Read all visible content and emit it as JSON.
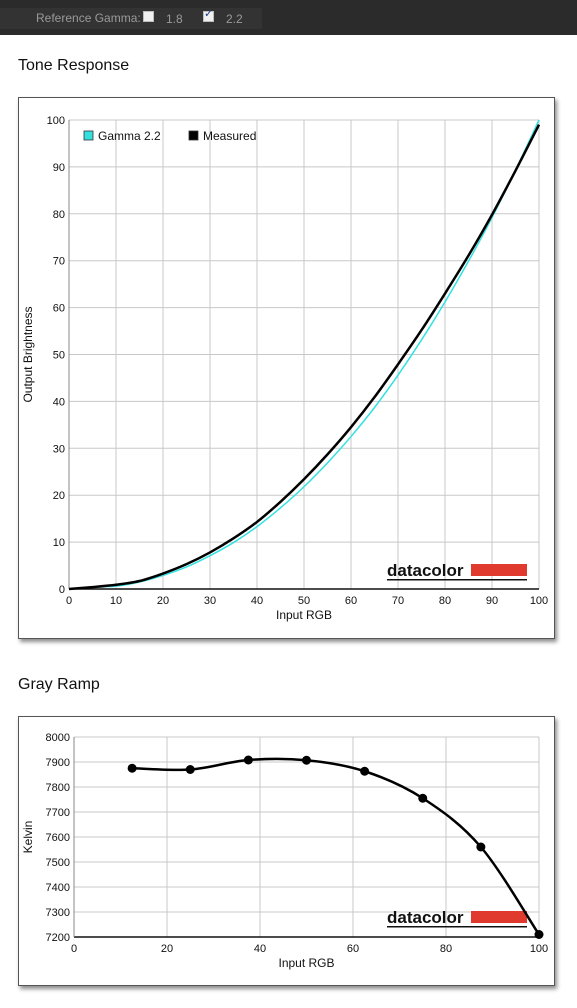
{
  "toolbar": {
    "reference_gamma_label": "Reference Gamma:",
    "options": [
      {
        "label": "1.8",
        "checked": false
      },
      {
        "label": "2.2",
        "checked": true
      }
    ]
  },
  "sections": {
    "tone_response_title": "Tone Response",
    "gray_ramp_title": "Gray Ramp"
  },
  "watermark": "datacolor",
  "colors": {
    "gamma_series": "#33e0e0",
    "measured_series": "#000000",
    "watermark_bar": "#e03a2e"
  },
  "chart_data": [
    {
      "type": "line",
      "xlabel": "Input RGB",
      "ylabel": "Output Brightness",
      "xlim": [
        0,
        100
      ],
      "ylim": [
        0,
        100
      ],
      "xticks": [
        0,
        10,
        20,
        30,
        40,
        50,
        60,
        70,
        80,
        90,
        100
      ],
      "yticks": [
        0,
        10,
        20,
        30,
        40,
        50,
        60,
        70,
        80,
        90,
        100
      ],
      "grid": true,
      "legend_position": "top-left",
      "series": [
        {
          "name": "Gamma 2.2",
          "color": "#33e0e0",
          "x": [
            0,
            5,
            10,
            15,
            20,
            25,
            30,
            35,
            40,
            45,
            50,
            55,
            60,
            65,
            70,
            75,
            80,
            85,
            90,
            95,
            100
          ],
          "y": [
            0,
            0.4,
            0.6,
            1.5,
            2.9,
            4.7,
            7.1,
            9.9,
            13.3,
            17.3,
            21.8,
            26.9,
            32.5,
            38.7,
            45.6,
            53.1,
            61.2,
            69.9,
            79.2,
            89.3,
            100
          ]
        },
        {
          "name": "Measured",
          "color": "#000000",
          "x": [
            0,
            5,
            10,
            15,
            20,
            25,
            30,
            35,
            40,
            45,
            50,
            55,
            60,
            65,
            70,
            75,
            80,
            85,
            90,
            95,
            100
          ],
          "y": [
            0,
            0.4,
            0.9,
            1.7,
            3.3,
            5.3,
            7.8,
            10.8,
            14.3,
            18.6,
            23.4,
            28.7,
            34.5,
            40.9,
            47.9,
            55.2,
            63.0,
            71.1,
            79.8,
            89.2,
            99
          ]
        }
      ]
    },
    {
      "type": "line",
      "xlabel": "Input RGB",
      "ylabel": "Kelvin",
      "xlim": [
        0,
        100
      ],
      "ylim": [
        7200,
        8000
      ],
      "xticks": [
        0,
        20,
        40,
        60,
        80,
        100
      ],
      "yticks": [
        7200,
        7300,
        7400,
        7500,
        7600,
        7700,
        7800,
        7900,
        8000
      ],
      "grid": true,
      "series": [
        {
          "x": [
            12.5,
            25,
            37.5,
            50,
            62.5,
            75,
            87.5,
            100
          ],
          "y": [
            7875,
            7870,
            7908,
            7907,
            7863,
            7755,
            7560,
            7210
          ]
        }
      ]
    }
  ]
}
